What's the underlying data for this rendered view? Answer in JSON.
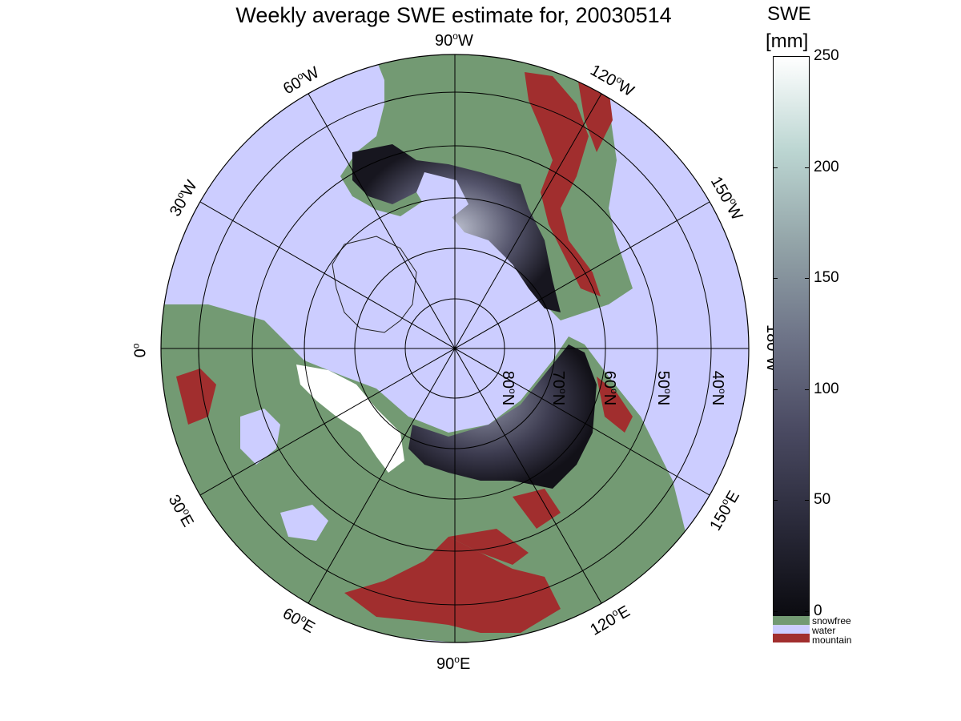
{
  "title": "Weekly average SWE estimate for, 20030514",
  "colorbar": {
    "title_line1": "SWE",
    "title_line2": "[mm]",
    "ticks": [
      "0",
      "50",
      "100",
      "150",
      "200",
      "250"
    ],
    "range": [
      0,
      250
    ],
    "gradient_colors": [
      "#0b0b10",
      "#2a2a3a",
      "#4a4a62",
      "#6e7488",
      "#93a4a8",
      "#bcd6d2",
      "#ffffff"
    ],
    "classes": [
      {
        "label": "snowfree",
        "color": "#739a73"
      },
      {
        "label": "water",
        "color": "#cccdff"
      },
      {
        "label": "mountain",
        "color": "#a12e2e"
      }
    ]
  },
  "map": {
    "projection": "north polar stereographic",
    "ocean_color": "#cccdff",
    "land_color": "#739a73",
    "mountain_color": "#a12e2e",
    "snow_dark": "#2a2838",
    "longitude_labels": [
      {
        "deg": "90",
        "hemi": "W"
      },
      {
        "deg": "60",
        "hemi": "W"
      },
      {
        "deg": "30",
        "hemi": "W"
      },
      {
        "deg": "0",
        "hemi": ""
      },
      {
        "deg": "120",
        "hemi": "W"
      },
      {
        "deg": "150",
        "hemi": "W"
      },
      {
        "deg": "180",
        "hemi": "W"
      },
      {
        "deg": "30",
        "hemi": "E"
      },
      {
        "deg": "60",
        "hemi": "E"
      },
      {
        "deg": "90",
        "hemi": "E"
      },
      {
        "deg": "120",
        "hemi": "E"
      },
      {
        "deg": "150",
        "hemi": "E"
      }
    ],
    "latitude_labels": [
      "80",
      "70",
      "60",
      "50",
      "40"
    ],
    "latitude_suffix": "N"
  }
}
